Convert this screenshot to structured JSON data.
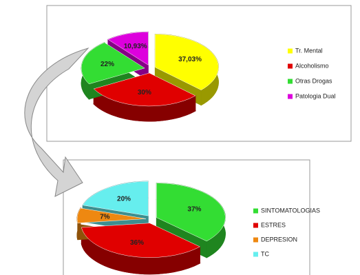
{
  "chart_data": [
    {
      "type": "pie",
      "categories": [
        "Tr. Mental",
        "Alcoholismo",
        "Otras Drogas",
        "Patologia Dual"
      ],
      "values": [
        37.03,
        30,
        22,
        10.93
      ],
      "value_labels": [
        "37,03%",
        "30%",
        "22%",
        "10,93%"
      ],
      "colors": [
        "#ffff00",
        "#e00000",
        "#33dd33",
        "#dd00dd"
      ]
    },
    {
      "type": "pie",
      "categories": [
        "SINTOMATOLOGIAS",
        "ESTRES",
        "DEPRESION",
        "TC"
      ],
      "values": [
        37,
        36,
        7,
        20
      ],
      "value_labels": [
        "37%",
        "36%",
        "7%",
        "20%"
      ],
      "colors": [
        "#33dd33",
        "#e00000",
        "#ee8811",
        "#66eeee"
      ]
    }
  ]
}
